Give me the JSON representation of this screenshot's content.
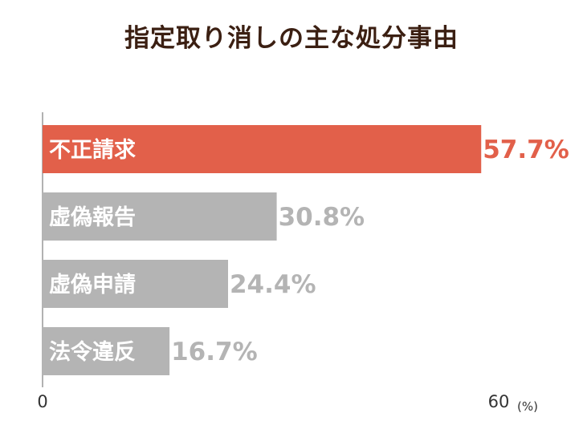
{
  "chart_data": {
    "type": "bar",
    "orientation": "horizontal",
    "title": "指定取り消しの主な処分事由",
    "categories": [
      "不正請求",
      "虚偽報告",
      "虚偽申請",
      "法令違反"
    ],
    "values": [
      57.7,
      30.8,
      24.4,
      16.7
    ],
    "value_labels": [
      "57.7%",
      "30.8%",
      "24.4%",
      "16.7%"
    ],
    "xlim": [
      0,
      60
    ],
    "x_ticks": [
      "0",
      "60"
    ],
    "unit": "(%)",
    "highlight_index": 0,
    "colors": {
      "highlight_bar": "#e2604a",
      "highlight_text": "#e2604a",
      "normal_bar": "#b4b4b4",
      "normal_text": "#b4b4b4",
      "axis": "#999999",
      "title": "#3b1f12"
    }
  }
}
